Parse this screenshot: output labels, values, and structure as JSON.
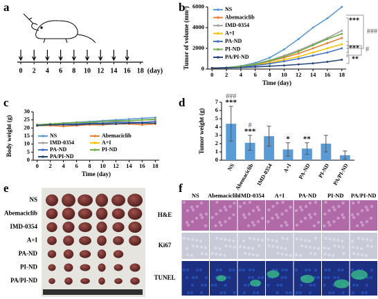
{
  "panel_labels": [
    "a",
    "b",
    "c",
    "d",
    "e",
    "f"
  ],
  "schedule": {
    "days": [
      0,
      2,
      4,
      6,
      8,
      10,
      12,
      14,
      16,
      18
    ],
    "unit": "(day)",
    "injection_days": [
      0,
      2,
      4,
      6,
      8,
      10,
      12,
      14,
      16
    ]
  },
  "chart_data": [
    {
      "type": "line",
      "x_label": "Time (day)",
      "y_label": "Tumor of volume (mm³)",
      "x": [
        0,
        2,
        4,
        6,
        8,
        10,
        12,
        14,
        16,
        18
      ],
      "xlim": [
        -0.6,
        18.6
      ],
      "xticks": [
        0,
        2,
        4,
        6,
        8,
        10,
        12,
        14,
        16,
        18
      ],
      "ylim": [
        0,
        6000
      ],
      "yticks": [
        0,
        2000,
        4000,
        6000
      ],
      "legend": "upper left",
      "series": [
        {
          "name": "NS",
          "color": "#5b9bd5",
          "values": [
            100,
            150,
            300,
            600,
            1100,
            1900,
            2900,
            4000,
            4900,
            6000
          ]
        },
        {
          "name": "Abemaciclib",
          "color": "#ed7d31",
          "values": [
            100,
            130,
            250,
            450,
            750,
            1100,
            1500,
            2000,
            2500,
            3000
          ]
        },
        {
          "name": "IMD-0354",
          "color": "#a5a5a5",
          "values": [
            100,
            140,
            280,
            500,
            850,
            1300,
            1800,
            2400,
            3000,
            3700
          ]
        },
        {
          "name": "A+I",
          "color": "#ffc000",
          "values": [
            100,
            120,
            220,
            380,
            600,
            900,
            1200,
            1600,
            2000,
            2400
          ]
        },
        {
          "name": "PA-ND",
          "color": "#4472c4",
          "values": [
            100,
            120,
            200,
            330,
            520,
            750,
            1000,
            1300,
            1600,
            2000
          ]
        },
        {
          "name": "PI-ND",
          "color": "#70ad47",
          "values": [
            100,
            130,
            260,
            470,
            800,
            1200,
            1700,
            2300,
            2900,
            3400
          ]
        },
        {
          "name": "PA/PI-ND",
          "color": "#264478",
          "values": [
            100,
            110,
            150,
            200,
            280,
            350,
            450,
            550,
            700,
            900
          ]
        }
      ],
      "annotations": [
        "***",
        "###",
        "***",
        "#",
        "**"
      ]
    },
    {
      "type": "line",
      "x_label": "Time (day)",
      "y_label": "Body weight (g)",
      "x": [
        0,
        2,
        4,
        6,
        8,
        10,
        12,
        14,
        16,
        18
      ],
      "xlim": [
        -0.6,
        18.6
      ],
      "xticks": [
        0,
        2,
        4,
        6,
        8,
        10,
        12,
        14,
        16,
        18
      ],
      "ylim": [
        0,
        30
      ],
      "yticks": [
        0,
        5,
        10,
        15,
        20,
        25,
        30
      ],
      "legend": "lower left",
      "series": [
        {
          "name": "NS",
          "color": "#5b9bd5",
          "values": [
            22,
            22.5,
            23,
            23.5,
            24,
            24.5,
            25,
            25.5,
            26,
            26.5
          ]
        },
        {
          "name": "Abemaciclib",
          "color": "#ed7d31",
          "values": [
            21.5,
            21.5,
            21,
            21.5,
            22,
            22,
            22.5,
            22.5,
            22,
            22.5
          ]
        },
        {
          "name": "IMD-0354",
          "color": "#a5a5a5",
          "values": [
            22,
            22.5,
            23,
            23,
            23.5,
            24,
            24,
            24.5,
            25,
            25
          ]
        },
        {
          "name": "A+I",
          "color": "#ffc000",
          "values": [
            21.5,
            22,
            22,
            22.5,
            22.5,
            23,
            23,
            23.5,
            23.5,
            24
          ]
        },
        {
          "name": "PA-ND",
          "color": "#4472c4",
          "values": [
            22,
            22,
            22.5,
            22.5,
            23,
            23,
            23.5,
            23.5,
            23.5,
            24
          ]
        },
        {
          "name": "PI-ND",
          "color": "#70ad47",
          "values": [
            22,
            22.5,
            23,
            23.5,
            23.5,
            24,
            24.5,
            24.5,
            25,
            25.5
          ]
        },
        {
          "name": "PA/PI-ND",
          "color": "#264478",
          "values": [
            21.5,
            22,
            22,
            22,
            22.5,
            22.5,
            22.5,
            23,
            23,
            23
          ]
        }
      ]
    },
    {
      "type": "bar",
      "y_label": "Tumor weight (g)",
      "categories": [
        "NS",
        "Abemaciclib",
        "IMD-0354",
        "A+I",
        "PA-ND",
        "PI-ND",
        "PA/PI-ND"
      ],
      "values": [
        4.4,
        2.1,
        2.9,
        1.3,
        1.4,
        2.0,
        0.6
      ],
      "errors": [
        2.1,
        0.9,
        1.2,
        0.8,
        0.7,
        1.0,
        0.5
      ],
      "color": "#5b9bd5",
      "ylim": [
        0,
        7
      ],
      "yticks": [
        0,
        1,
        2,
        3,
        4,
        5,
        6,
        7
      ],
      "significance_vs_ns": [
        "***",
        "***",
        null,
        "*",
        "**",
        null,
        null
      ],
      "significance_vs_combination": [
        "###",
        "#",
        null,
        null,
        null,
        null,
        null
      ]
    }
  ],
  "photo": {
    "rows": [
      "NS",
      "Abemaciclib",
      "IMD-0354",
      "A+I",
      "PA-ND",
      "PI-ND",
      "PA/PI-ND"
    ]
  },
  "histology": {
    "columns": [
      "NS",
      "Abemaciclib",
      "IMD-0354",
      "A+I",
      "PA-ND",
      "PI-ND",
      "PA/PI-ND"
    ],
    "rows": [
      "H&E",
      "Ki67",
      "TUNEL"
    ]
  }
}
